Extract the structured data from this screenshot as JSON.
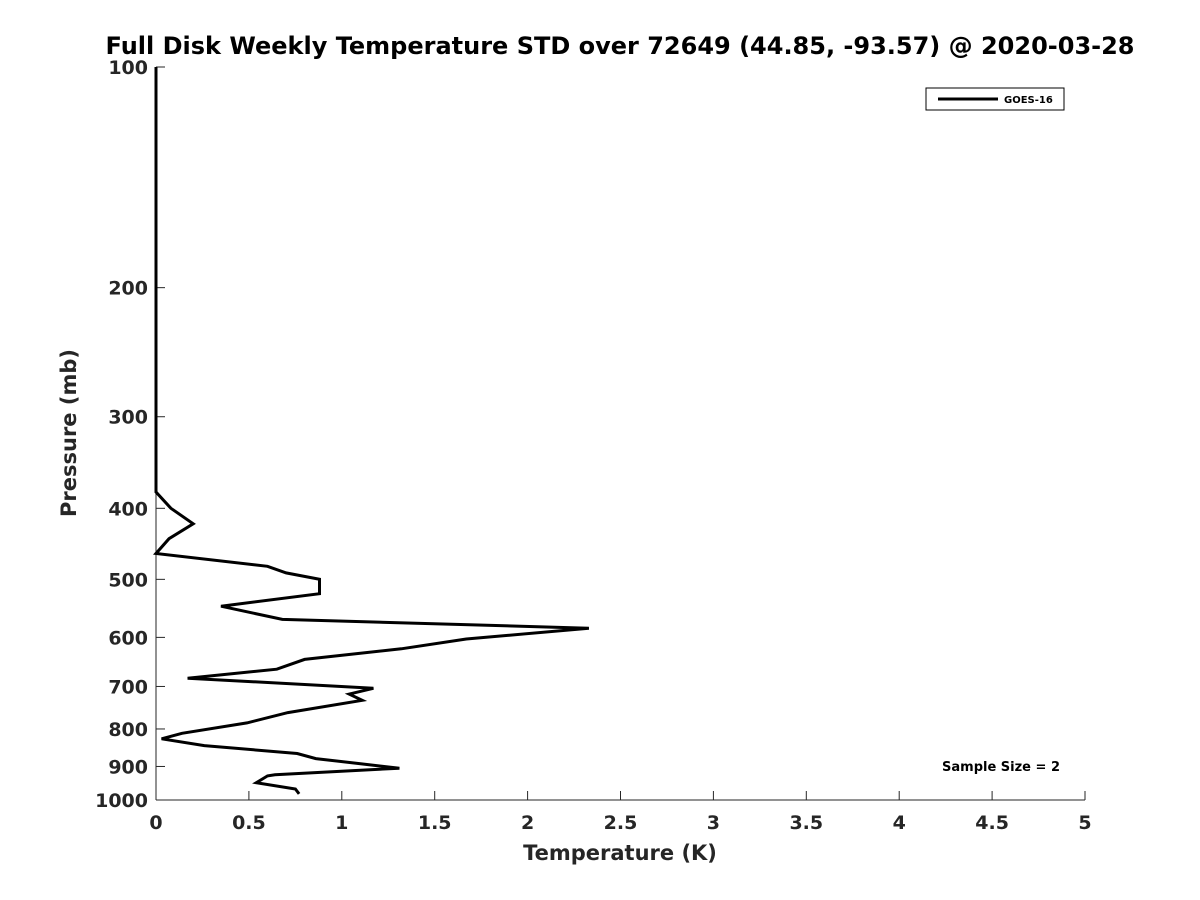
{
  "chart_data": {
    "type": "line",
    "title": "Full Disk Weekly Temperature STD over 72649 (44.85, -93.57) @ 2020-03-28",
    "xlabel": "Temperature (K)",
    "ylabel": "Pressure (mb)",
    "xlim": [
      0,
      5
    ],
    "ylim": [
      1000,
      100
    ],
    "y_scale": "log",
    "y_reversed": true,
    "x_ticks": [
      0,
      0.5,
      1,
      1.5,
      2,
      2.5,
      3,
      3.5,
      4,
      4.5,
      5
    ],
    "x_tick_labels": [
      "0",
      "0.5",
      "1",
      "1.5",
      "2",
      "2.5",
      "3",
      "3.5",
      "4",
      "4.5",
      "5"
    ],
    "y_ticks": [
      100,
      200,
      300,
      400,
      500,
      600,
      700,
      800,
      900,
      1000
    ],
    "y_tick_labels": [
      "100",
      "200",
      "300",
      "400",
      "500",
      "600",
      "700",
      "800",
      "900",
      "1000"
    ],
    "grid": false,
    "legend_position": "top-right",
    "annotation": "Sample Size = 2",
    "line_color": "#000000",
    "series": [
      {
        "name": "GOES-16",
        "points": [
          [
            0.0,
            100
          ],
          [
            0.0,
            150
          ],
          [
            0.0,
            200
          ],
          [
            0.0,
            250
          ],
          [
            0.0,
            300
          ],
          [
            0.0,
            350
          ],
          [
            0.0,
            380
          ],
          [
            0.08,
            400
          ],
          [
            0.2,
            420
          ],
          [
            0.07,
            440
          ],
          [
            0.0,
            461
          ],
          [
            0.6,
            480
          ],
          [
            0.7,
            490
          ],
          [
            0.88,
            500
          ],
          [
            0.88,
            523
          ],
          [
            0.35,
            544
          ],
          [
            0.68,
            567
          ],
          [
            2.33,
            583
          ],
          [
            1.67,
            603
          ],
          [
            1.32,
            622
          ],
          [
            0.8,
            643
          ],
          [
            0.65,
            663
          ],
          [
            0.17,
            682
          ],
          [
            1.17,
            704
          ],
          [
            1.04,
            717
          ],
          [
            1.11,
            731
          ],
          [
            0.71,
            760
          ],
          [
            0.49,
            785
          ],
          [
            0.14,
            811
          ],
          [
            0.03,
            825
          ],
          [
            0.26,
            843
          ],
          [
            0.76,
            864
          ],
          [
            0.86,
            878
          ],
          [
            1.31,
            905
          ],
          [
            0.64,
            924
          ],
          [
            0.6,
            927
          ],
          [
            0.54,
            947
          ],
          [
            0.75,
            966
          ],
          [
            0.77,
            981
          ]
        ]
      }
    ]
  }
}
